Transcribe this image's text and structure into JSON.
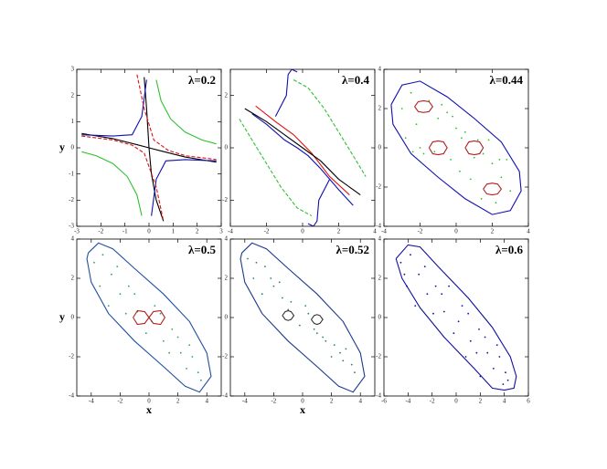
{
  "chart_data": [
    {
      "type": "scatter",
      "title": "λ=0.2",
      "ylabel": "y",
      "xlim": [
        -3,
        3
      ],
      "ylim": [
        -3,
        3
      ],
      "xticks": [
        -3,
        -2,
        -1,
        0,
        1,
        2,
        3
      ],
      "yticks": [
        -3,
        -2,
        -1,
        0,
        1,
        2,
        3
      ],
      "series": [
        {
          "color": "#000000",
          "mode": "line",
          "x": [
            -2.8,
            -1.5,
            -0.5,
            0,
            0.5,
            1.5,
            2.8
          ],
          "values": [
            0.55,
            0.35,
            0.12,
            0,
            -0.12,
            -0.35,
            -0.55
          ]
        },
        {
          "color": "#000000",
          "mode": "line",
          "x": [
            -0.2,
            -0.1,
            0,
            0.1,
            0.3,
            0.6
          ],
          "values": [
            2.7,
            1.5,
            0,
            -1,
            -2,
            -2.8
          ]
        },
        {
          "color": "#1010b0",
          "mode": "line",
          "x": [
            -2.8,
            -1.5,
            -0.7,
            -0.3,
            -0.1
          ],
          "values": [
            0.5,
            0.45,
            0.5,
            1.2,
            2.6
          ]
        },
        {
          "color": "#1010b0",
          "mode": "line",
          "x": [
            0.1,
            0.3,
            0.7,
            1.5,
            2.8
          ],
          "values": [
            -2.6,
            -1.2,
            -0.5,
            -0.45,
            -0.5
          ]
        },
        {
          "color": "#e01010",
          "mode": "line",
          "dash": true,
          "x": [
            -2.8,
            -1.5,
            -0.7,
            -0.2,
            0.3,
            0.6
          ],
          "values": [
            0.45,
            0.3,
            0.1,
            -0.2,
            -1.5,
            -2.8
          ]
        },
        {
          "color": "#e01010",
          "mode": "line",
          "dash": true,
          "x": [
            -0.5,
            -0.2,
            0.2,
            0.8,
            1.5,
            2.8
          ],
          "values": [
            2.8,
            1.5,
            0.3,
            -0.1,
            -0.3,
            -0.45
          ]
        },
        {
          "color": "#30c030",
          "mode": "line",
          "x": [
            0.3,
            0.5,
            0.9,
            1.5,
            2.2,
            2.8
          ],
          "values": [
            2.6,
            1.8,
            1.1,
            0.6,
            0.3,
            0.15
          ]
        },
        {
          "color": "#30c030",
          "mode": "line",
          "x": [
            -2.8,
            -2.2,
            -1.5,
            -0.9,
            -0.5,
            -0.3
          ],
          "values": [
            -0.15,
            -0.3,
            -0.6,
            -1.1,
            -1.8,
            -2.6
          ]
        }
      ]
    },
    {
      "type": "scatter",
      "title": "λ=0.4",
      "xlim": [
        -4,
        4
      ],
      "ylim": [
        -3,
        3
      ],
      "xticks": [
        -4,
        -2,
        0,
        2,
        4
      ],
      "yticks": [
        -2,
        0,
        2
      ],
      "series": [
        {
          "color": "#1010b0",
          "mode": "line",
          "x": [
            -2.8,
            -2,
            -1,
            -0.3,
            0.3,
            1,
            2,
            2.8
          ],
          "values": [
            1.3,
            0.9,
            0.3,
            0,
            -0.3,
            -0.8,
            -1.6,
            -2.2
          ]
        },
        {
          "color": "#1010b0",
          "mode": "line",
          "x": [
            -1.5,
            -0.9,
            -0.8,
            -0.6,
            -0.3
          ],
          "values": [
            1.2,
            2.0,
            2.8,
            3.0,
            2.9
          ]
        },
        {
          "color": "#1010b0",
          "mode": "line",
          "x": [
            1.5,
            0.9,
            0.8,
            0.6,
            0.3
          ],
          "values": [
            -1.2,
            -2.0,
            -2.8,
            -3.0,
            -2.9
          ]
        },
        {
          "color": "#e01010",
          "mode": "line",
          "x": [
            -2.6,
            -1.5,
            -0.5,
            0.5,
            1.5,
            2.6
          ],
          "values": [
            1.6,
            1.0,
            0.5,
            -0.2,
            -1.1,
            -1.8
          ]
        },
        {
          "color": "#000000",
          "mode": "line",
          "x": [
            -3.2,
            -2,
            -1,
            0,
            1,
            2,
            3.2
          ],
          "values": [
            1.5,
            1.0,
            0.5,
            0,
            -0.5,
            -1.2,
            -1.8
          ]
        },
        {
          "color": "#30c030",
          "mode": "line",
          "dash": true,
          "x": [
            -0.5,
            0.3,
            1.2,
            2,
            2.8,
            3.5
          ],
          "values": [
            2.6,
            2.3,
            1.5,
            0.6,
            -0.3,
            -1.1
          ]
        },
        {
          "color": "#30c030",
          "mode": "line",
          "dash": true,
          "x": [
            -3.5,
            -2.8,
            -2,
            -1.2,
            -0.3,
            0.5
          ],
          "values": [
            1.1,
            0.3,
            -0.6,
            -1.5,
            -2.3,
            -2.6
          ]
        }
      ]
    },
    {
      "type": "scatter",
      "title": "λ=0.44",
      "xlim": [
        -4,
        4
      ],
      "ylim": [
        -4,
        4
      ],
      "xticks": [
        -4,
        -2,
        0,
        2,
        4
      ],
      "yticks": [
        -4,
        -2,
        0,
        2,
        4
      ],
      "series": [
        {
          "color": "#1010b0",
          "mode": "line",
          "x": [
            -3.6,
            -3,
            -2,
            -0.5,
            1,
            2.5,
            3.5,
            3.6,
            3,
            2,
            0.5,
            -1,
            -2.5,
            -3.5,
            -3.6
          ],
          "values": [
            2.2,
            3.2,
            3.4,
            2.6,
            1.5,
            0.3,
            -1.2,
            -2.2,
            -3.2,
            -3.4,
            -2.6,
            -1.5,
            -0.3,
            1.2,
            2.2
          ]
        },
        {
          "color": "#30c030",
          "mode": "points",
          "x": [
            -3,
            -2.5,
            -2.2,
            -1.5,
            -1,
            -0.5,
            0,
            0.5,
            1,
            1.5,
            2,
            2.5,
            3,
            -2.8,
            -2,
            -1.2,
            -0.3,
            0.3,
            1.2,
            2.2,
            2.8,
            -1.8,
            -0.8,
            0.2,
            1.8,
            -2.4,
            -0.2,
            0.8,
            2.4,
            1.4
          ],
          "values": [
            2.0,
            2.8,
            1.2,
            2.4,
            1.5,
            1.8,
            1.0,
            0.8,
            -0.5,
            -0.3,
            -0.8,
            -1.5,
            -2.2,
            0.5,
            0.0,
            -0.2,
            -0.6,
            0.5,
            0.4,
            -2.8,
            -0.6,
            -0.3,
            2.2,
            -1.2,
            0.4,
            -0.2,
            1.6,
            -1.6,
            -0.6,
            -2.6
          ]
        },
        {
          "color": "#b02020",
          "mode": "line",
          "x": [
            -2.3,
            -2.1,
            -1.8,
            -1.5,
            -1.3,
            -1.5,
            -1.8,
            -2.1,
            -2.3
          ],
          "values": [
            2.1,
            2.35,
            2.4,
            2.35,
            2.1,
            1.85,
            1.8,
            1.85,
            2.1
          ]
        },
        {
          "color": "#b02020",
          "mode": "line",
          "x": [
            -1.5,
            -1.3,
            -1,
            -0.7,
            -0.5,
            -0.7,
            -1,
            -1.3,
            -1.5
          ],
          "values": [
            0,
            0.3,
            0.35,
            0.3,
            0,
            -0.3,
            -0.35,
            -0.3,
            0
          ]
        },
        {
          "color": "#b02020",
          "mode": "line",
          "x": [
            0.5,
            0.7,
            1,
            1.3,
            1.5,
            1.3,
            1,
            0.7,
            0.5
          ],
          "values": [
            0,
            0.3,
            0.35,
            0.3,
            0,
            -0.3,
            -0.35,
            -0.3,
            0
          ]
        },
        {
          "color": "#b02020",
          "mode": "line",
          "x": [
            1.5,
            1.7,
            2,
            2.3,
            2.5,
            2.3,
            2,
            1.7,
            1.5
          ],
          "values": [
            -2.1,
            -1.85,
            -1.8,
            -1.85,
            -2.1,
            -2.35,
            -2.4,
            -2.35,
            -2.1
          ]
        }
      ]
    },
    {
      "type": "scatter",
      "title": "λ=0.5",
      "ylabel": "y",
      "xlabel": "x",
      "xlim": [
        -5,
        5
      ],
      "ylim": [
        -4,
        4
      ],
      "xticks": [
        -4,
        -2,
        0,
        2,
        4
      ],
      "yticks": [
        -4,
        -2,
        0,
        2,
        4
      ],
      "series": [
        {
          "color": "#2050a0",
          "mode": "line",
          "x": [
            -4.2,
            -3.5,
            -2.5,
            -1,
            1,
            2.8,
            4,
            4.3,
            3.5,
            2.5,
            1,
            -1,
            -2.8,
            -4,
            -4.3,
            -4.2
          ],
          "values": [
            3.3,
            3.8,
            3.5,
            2.5,
            1.2,
            -0.2,
            -1.8,
            -3,
            -3.8,
            -3.5,
            -2.5,
            -1.2,
            0.2,
            1.8,
            3,
            3.3
          ]
        },
        {
          "color": "#30a060",
          "mode": "points",
          "x": [
            -3.8,
            -3.2,
            -2.6,
            -2,
            -1.4,
            -0.8,
            -0.2,
            0.4,
            1,
            1.6,
            2.2,
            2.8,
            3.4,
            -3.4,
            -2.2,
            -1,
            0.2,
            1.4,
            2.6,
            3.6,
            -2.8,
            -1.6,
            0.8,
            2,
            3
          ],
          "values": [
            2.8,
            3.2,
            2.2,
            1.2,
            1.6,
            0.3,
            -0.8,
            0.6,
            -1.2,
            -0.6,
            -1.8,
            -1.4,
            -2.8,
            1.6,
            2.6,
            1.2,
            -0.2,
            -1.8,
            -2.6,
            -3.2,
            0.6,
            0.2,
            0.2,
            -1.0,
            -2.0
          ]
        },
        {
          "color": "#b02020",
          "mode": "line",
          "x": [
            -1.1,
            -0.8,
            -0.3,
            0,
            0.3,
            0.8,
            1.1,
            0.8,
            0.3,
            0,
            -0.3,
            -0.8,
            -1.1
          ],
          "values": [
            0,
            0.35,
            0.3,
            0,
            -0.3,
            -0.35,
            0,
            0.35,
            0.3,
            0,
            -0.3,
            -0.35,
            0
          ]
        }
      ]
    },
    {
      "type": "scatter",
      "title": "λ=0.52",
      "xlabel": "x",
      "xlim": [
        -5,
        5
      ],
      "ylim": [
        -4,
        4
      ],
      "xticks": [
        -4,
        -2,
        0,
        2,
        4
      ],
      "yticks": [
        -4,
        -2,
        0,
        2,
        4
      ],
      "series": [
        {
          "color": "#1a3a90",
          "mode": "line",
          "x": [
            -4.2,
            -3.5,
            -2.5,
            -1,
            1,
            2.8,
            4,
            4.3,
            3.5,
            2.5,
            1,
            -1,
            -2.8,
            -4,
            -4.3,
            -4.2
          ],
          "values": [
            3.3,
            3.8,
            3.5,
            2.5,
            1.2,
            -0.2,
            -1.8,
            -3,
            -3.8,
            -3.5,
            -2.5,
            -1.2,
            0.2,
            1.8,
            3,
            3.3
          ]
        },
        {
          "color": "#2a8070",
          "mode": "points",
          "x": [
            -3.8,
            -3.2,
            -2.6,
            -2,
            -1.4,
            -0.8,
            -0.2,
            0.4,
            1,
            1.6,
            2.2,
            2.8,
            3.4,
            -3.4,
            -2.2,
            -1,
            0.2,
            1.4,
            2.6,
            3.6,
            -2.8,
            -1.6,
            0.8,
            2,
            3
          ],
          "values": [
            3.0,
            2.8,
            2.6,
            1.6,
            1.0,
            0.8,
            -0.4,
            0.2,
            -0.8,
            -1.2,
            -1.4,
            -2.2,
            -2.4,
            2.0,
            2.0,
            0.4,
            0.6,
            -1.0,
            -1.8,
            -2.8,
            1.2,
            1.8,
            -0.6,
            -2.0,
            -1.6
          ]
        },
        {
          "color": "#303030",
          "mode": "line",
          "x": [
            -1.4,
            -1.2,
            -1,
            -0.8,
            -0.6,
            -0.8,
            -1,
            -1.2,
            -1.4
          ],
          "values": [
            0.1,
            0.3,
            0.35,
            0.3,
            0.1,
            -0.1,
            -0.15,
            -0.1,
            0.1
          ]
        },
        {
          "color": "#303030",
          "mode": "line",
          "x": [
            0.6,
            0.8,
            1,
            1.2,
            1.4,
            1.2,
            1,
            0.8,
            0.6
          ],
          "values": [
            -0.1,
            0.1,
            0.15,
            0.1,
            -0.1,
            -0.3,
            -0.35,
            -0.3,
            -0.1
          ]
        }
      ]
    },
    {
      "type": "scatter",
      "title": "λ=0.6",
      "xlim": [
        -6,
        6
      ],
      "ylim": [
        -4,
        4
      ],
      "xticks": [
        -6,
        -4,
        -2,
        0,
        2,
        4,
        6
      ],
      "yticks": [
        -4,
        -2,
        0,
        2,
        4
      ],
      "series": [
        {
          "color": "#1010a0",
          "mode": "line",
          "x": [
            -5,
            -4,
            -3,
            -1.5,
            1,
            3,
            4.5,
            5,
            4.8,
            4,
            3,
            1.5,
            -1,
            -3,
            -4.5,
            -5,
            -5
          ],
          "values": [
            3,
            3.7,
            3.6,
            2.6,
            1,
            -0.5,
            -2,
            -3,
            -3.6,
            -3.7,
            -3.6,
            -2.6,
            -1,
            0.5,
            2,
            3,
            3
          ]
        },
        {
          "color": "#1010a0",
          "mode": "points",
          "x": [
            -4.6,
            -3.8,
            -3.1,
            -2.4,
            -1.7,
            -1,
            -0.2,
            0.5,
            1.2,
            1.9,
            2.6,
            3.4,
            4.1,
            -4.1,
            -2.6,
            -1.2,
            0.2,
            1.7,
            3.1,
            4.3,
            -3.4,
            -1.9,
            1,
            2.4,
            3.6,
            -0.6,
            0.8,
            3.9,
            -4.3,
            2.0
          ],
          "values": [
            2.8,
            3.2,
            2.2,
            1.2,
            1.6,
            0.3,
            -0.8,
            0.6,
            -1.2,
            -0.6,
            -1.8,
            -1.4,
            -2.8,
            1.6,
            2.6,
            1.2,
            -0.2,
            -1.8,
            -2.6,
            -3.2,
            0.6,
            0.2,
            0.2,
            -1.0,
            -2.0,
            1.6,
            -2.0,
            -3.4,
            2.2,
            -3.0
          ]
        }
      ]
    }
  ]
}
